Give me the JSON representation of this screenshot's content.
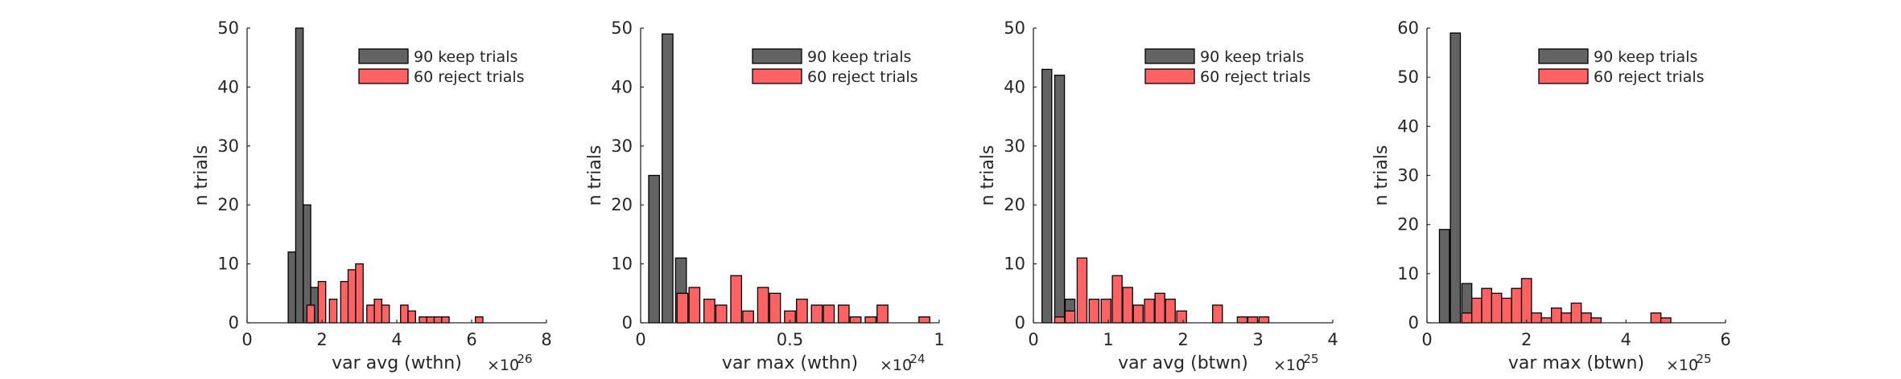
{
  "chart_data": [
    {
      "type": "bar",
      "xlabel": "var avg (wthn)",
      "ylabel": "n trials",
      "exponent": "-26",
      "xlim": [
        0,
        8
      ],
      "ylim": [
        0,
        50
      ],
      "xticks": [
        0,
        2,
        4,
        6,
        8
      ],
      "yticks": [
        0,
        10,
        20,
        30,
        40,
        50
      ],
      "bar_width": 0.2,
      "legend_position": "top-right",
      "series": [
        {
          "name": "90 keep trials",
          "color": "#636363",
          "x": [
            1.2,
            1.4,
            1.6,
            1.8
          ],
          "values": [
            12,
            50,
            20,
            6
          ]
        },
        {
          "name": "60 reject trials",
          "color": "#ff6262",
          "x": [
            1.7,
            2.0,
            2.3,
            2.6,
            2.8,
            3.0,
            3.3,
            3.5,
            3.7,
            4.2,
            4.4,
            4.7,
            4.9,
            5.1,
            5.3,
            6.2
          ],
          "values": [
            3,
            7,
            4,
            7,
            9,
            10,
            3,
            4,
            3,
            3,
            2,
            1,
            1,
            1,
            1,
            1
          ]
        }
      ]
    },
    {
      "type": "bar",
      "xlabel": "var max (wthn)",
      "ylabel": "n trials",
      "exponent": "-24",
      "xlim": [
        0,
        1
      ],
      "ylim": [
        0,
        50
      ],
      "xticks": [
        0,
        0.5,
        1
      ],
      "yticks": [
        0,
        10,
        20,
        30,
        40,
        50
      ],
      "bar_width": 0.036,
      "legend_position": "top-right",
      "series": [
        {
          "name": "90 keep trials",
          "color": "#636363",
          "x": [
            0.045,
            0.09,
            0.135
          ],
          "values": [
            25,
            49,
            11
          ]
        },
        {
          "name": "60 reject trials",
          "color": "#ff6262",
          "x": [
            0.14,
            0.18,
            0.23,
            0.27,
            0.32,
            0.36,
            0.41,
            0.45,
            0.5,
            0.54,
            0.59,
            0.63,
            0.68,
            0.72,
            0.77,
            0.81,
            0.86,
            0.95
          ],
          "values": [
            5,
            6,
            4,
            3,
            8,
            2,
            6,
            5,
            2,
            4,
            3,
            3,
            3,
            1,
            1,
            3,
            0,
            1
          ]
        }
      ]
    },
    {
      "type": "bar",
      "xlabel": "var avg (btwn)",
      "ylabel": "n trials",
      "exponent": "-25",
      "xlim": [
        0,
        4
      ],
      "ylim": [
        0,
        50
      ],
      "xticks": [
        0,
        1,
        2,
        3,
        4
      ],
      "yticks": [
        0,
        10,
        20,
        30,
        40,
        50
      ],
      "bar_width": 0.13,
      "legend_position": "top-right",
      "series": [
        {
          "name": "90 keep trials",
          "color": "#636363",
          "x": [
            0.18,
            0.35,
            0.49
          ],
          "values": [
            43,
            42,
            4
          ]
        },
        {
          "name": "60 reject trials",
          "color": "#ff6262",
          "x": [
            0.35,
            0.49,
            0.65,
            0.81,
            0.97,
            1.12,
            1.26,
            1.4,
            1.55,
            1.69,
            1.83,
            1.98,
            2.46,
            2.79,
            2.93,
            3.08
          ],
          "values": [
            1,
            2,
            11,
            4,
            4,
            8,
            6,
            3,
            4,
            5,
            4,
            2,
            3,
            1,
            1,
            1
          ]
        }
      ]
    },
    {
      "type": "bar",
      "xlabel": "var max (btwn)",
      "ylabel": "n trials",
      "exponent": "-25",
      "xlim": [
        0,
        6
      ],
      "ylim": [
        0,
        60
      ],
      "xticks": [
        0,
        2,
        4,
        6
      ],
      "yticks": [
        0,
        10,
        20,
        30,
        40,
        50,
        60
      ],
      "bar_width": 0.2,
      "legend_position": "top-right",
      "series": [
        {
          "name": "90 keep trials",
          "color": "#636363",
          "x": [
            0.35,
            0.57,
            0.8
          ],
          "values": [
            19,
            59,
            8
          ]
        },
        {
          "name": "60 reject trials",
          "color": "#ff6262",
          "x": [
            0.8,
            1.0,
            1.2,
            1.4,
            1.6,
            1.8,
            2.0,
            2.2,
            2.4,
            2.6,
            2.8,
            3.0,
            3.2,
            3.4,
            3.6,
            4.6,
            4.8
          ],
          "values": [
            2,
            5,
            7,
            6,
            5,
            7,
            9,
            2,
            1,
            3,
            2,
            4,
            2,
            1,
            0,
            2,
            1
          ]
        }
      ]
    }
  ]
}
